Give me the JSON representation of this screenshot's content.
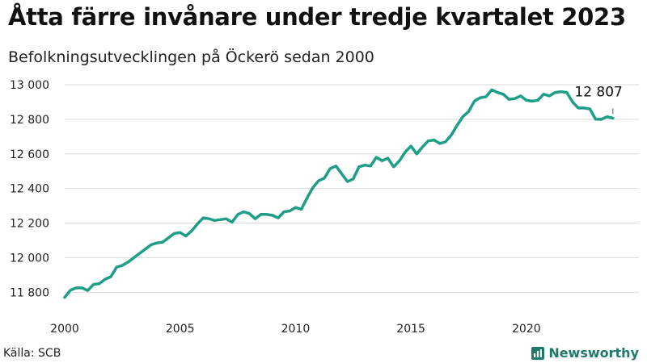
{
  "title": "Åtta färre invånare under tredje kvartalet 2023",
  "subtitle": "Befolkningsutvecklingen på Öckerö sedan 2000",
  "source": "Källa: SCB",
  "brand": {
    "name": "Newsworthy",
    "icon": "bar-chart-icon",
    "color": "#1f7a6c"
  },
  "chart_data": {
    "type": "line",
    "title": "Åtta färre invånare under tredje kvartalet 2023",
    "subtitle": "Befolkningsutvecklingen på Öckerö sedan 2000",
    "xlabel": "",
    "ylabel": "",
    "grid": true,
    "line_color": "#1f9e87",
    "xlim": [
      2000,
      2024
    ],
    "ylim": [
      11750,
      13000
    ],
    "x_ticks": [
      2000,
      2005,
      2010,
      2015,
      2020
    ],
    "x_tick_labels": [
      "2000",
      "2005",
      "2010",
      "2015",
      "2020"
    ],
    "y_ticks": [
      11800,
      12000,
      12200,
      12400,
      12600,
      12800,
      13000
    ],
    "y_tick_labels": [
      "11 800",
      "12 000",
      "12 200",
      "12 400",
      "12 600",
      "12 800",
      "13 000"
    ],
    "annotation": {
      "text": "12 807",
      "x": 2023.75,
      "y": 12807
    },
    "series": [
      {
        "x": [
          2000.0,
          2000.25,
          2000.5,
          2000.75,
          2001.0,
          2001.25,
          2001.5,
          2001.75,
          2002.0,
          2002.25,
          2002.5,
          2002.75,
          2003.0,
          2003.25,
          2003.5,
          2003.75,
          2004.0,
          2004.25,
          2004.5,
          2004.75,
          2005.0,
          2005.25,
          2005.5,
          2005.75,
          2006.0,
          2006.25,
          2006.5,
          2006.75,
          2007.0,
          2007.25,
          2007.5,
          2007.75,
          2008.0,
          2008.25,
          2008.5,
          2008.75,
          2009.0,
          2009.25,
          2009.5,
          2009.75,
          2010.0,
          2010.25,
          2010.5,
          2010.75,
          2011.0,
          2011.25,
          2011.5,
          2011.75,
          2012.0,
          2012.25,
          2012.5,
          2012.75,
          2013.0,
          2013.25,
          2013.5,
          2013.75,
          2014.0,
          2014.25,
          2014.5,
          2014.75,
          2015.0,
          2015.25,
          2015.5,
          2015.75,
          2016.0,
          2016.25,
          2016.5,
          2016.75,
          2017.0,
          2017.25,
          2017.5,
          2017.75,
          2018.0,
          2018.25,
          2018.5,
          2018.75,
          2019.0,
          2019.25,
          2019.5,
          2019.75,
          2020.0,
          2020.25,
          2020.5,
          2020.75,
          2021.0,
          2021.25,
          2021.5,
          2021.75,
          2022.0,
          2022.25,
          2022.5,
          2022.75,
          2023.0,
          2023.25,
          2023.5,
          2023.75
        ],
        "values": [
          11770,
          11812,
          11825,
          11825,
          11810,
          11845,
          11850,
          11875,
          11890,
          11945,
          11955,
          11975,
          12000,
          12025,
          12050,
          12075,
          12085,
          12090,
          12115,
          12140,
          12145,
          12125,
          12155,
          12195,
          12230,
          12225,
          12215,
          12220,
          12225,
          12205,
          12250,
          12265,
          12255,
          12225,
          12250,
          12250,
          12245,
          12230,
          12265,
          12270,
          12290,
          12280,
          12345,
          12405,
          12445,
          12460,
          12515,
          12530,
          12485,
          12440,
          12455,
          12525,
          12535,
          12530,
          12580,
          12560,
          12575,
          12525,
          12560,
          12610,
          12645,
          12600,
          12640,
          12675,
          12680,
          12660,
          12670,
          12710,
          12765,
          12815,
          12845,
          12905,
          12925,
          12930,
          12970,
          12955,
          12945,
          12915,
          12920,
          12935,
          12910,
          12905,
          12910,
          12945,
          12935,
          12955,
          12960,
          12955,
          12900,
          12865,
          12865,
          12860,
          12800,
          12800,
          12815,
          12807
        ]
      }
    ]
  }
}
